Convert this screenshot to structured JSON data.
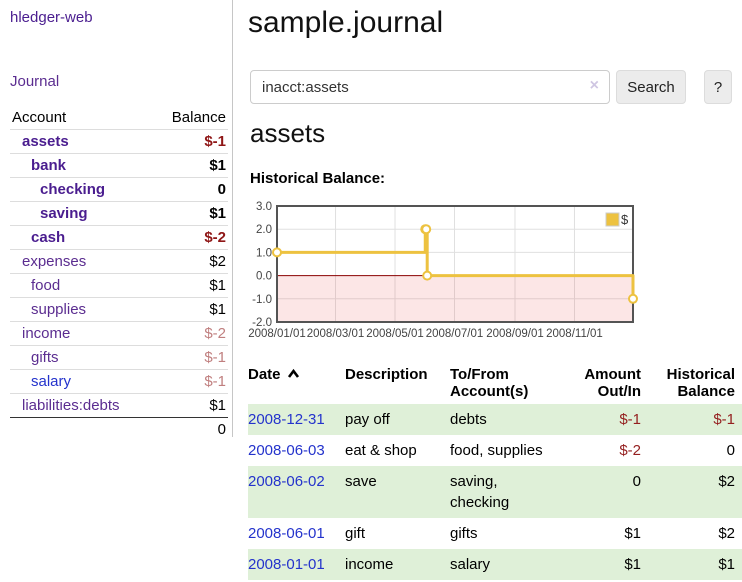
{
  "app": {
    "brand": "hledger-web"
  },
  "sidebar": {
    "journal_label": "Journal",
    "accounts": {
      "header_account": "Account",
      "header_balance": "Balance",
      "rows": [
        {
          "name": "assets",
          "balance": "$-1"
        },
        {
          "name": "bank",
          "balance": "$1"
        },
        {
          "name": "checking",
          "balance": "0"
        },
        {
          "name": "saving",
          "balance": "$1"
        },
        {
          "name": "cash",
          "balance": "$-2"
        },
        {
          "name": "expenses",
          "balance": "$2"
        },
        {
          "name": "food",
          "balance": "$1"
        },
        {
          "name": "supplies",
          "balance": "$1"
        },
        {
          "name": "income",
          "balance": "$-2"
        },
        {
          "name": "gifts",
          "balance": "$-1"
        },
        {
          "name": "salary",
          "balance": "$-1"
        },
        {
          "name": "liabilities:debts",
          "balance": "$1"
        }
      ],
      "total": "0"
    }
  },
  "header": {
    "title": "sample.journal"
  },
  "search": {
    "value": "inacct:assets",
    "clear_icon": "×",
    "button_label": "Search",
    "help_label": "?"
  },
  "account_view": {
    "heading": "assets",
    "chart_label": "Historical Balance:"
  },
  "chart_data": {
    "type": "line",
    "step": true,
    "title": "Historical Balance",
    "legend": {
      "label": "$",
      "color": "#edc240",
      "position": "top-right"
    },
    "xlim": [
      "2008-01-01",
      "2008-12-31"
    ],
    "ylim": [
      -2.0,
      3.0
    ],
    "y_ticks": [
      3.0,
      2.0,
      1.0,
      0.0,
      -1.0,
      -2.0
    ],
    "x_ticks": [
      {
        "date": "2008-01-01",
        "label": "2008/01/01"
      },
      {
        "date": "2008-03-01",
        "label": "2008/03/01"
      },
      {
        "date": "2008-05-01",
        "label": "2008/05/01"
      },
      {
        "date": "2008-07-01",
        "label": "2008/07/01"
      },
      {
        "date": "2008-09-01",
        "label": "2008/09/01"
      },
      {
        "date": "2008-11-01",
        "label": "2008/11/01"
      }
    ],
    "series": [
      {
        "name": "$",
        "color": "#edc240",
        "points": [
          [
            "2008-01-01",
            1.0
          ],
          [
            "2008-06-01",
            2.0
          ],
          [
            "2008-06-02",
            2.0
          ],
          [
            "2008-06-03",
            0.0
          ],
          [
            "2008-12-31",
            -1.0
          ]
        ]
      }
    ],
    "zero_line_color": "#8a0000",
    "negative_region_color": "rgba(230,60,60,0.13)",
    "grid": true
  },
  "register": {
    "headers": {
      "date": "Date",
      "description": "Description",
      "accounts": "To/From Account(s)",
      "amount": "Amount Out/In",
      "balance": "Historical Balance"
    },
    "rows": [
      {
        "date": "2008-12-31",
        "description": "pay off",
        "accounts": "debts",
        "amount": "$-1",
        "balance": "$-1"
      },
      {
        "date": "2008-06-03",
        "description": "eat & shop",
        "accounts": "food, supplies",
        "amount": "$-2",
        "balance": "0"
      },
      {
        "date": "2008-06-02",
        "description": "save",
        "accounts": "saving, checking",
        "amount": "0",
        "balance": "$2"
      },
      {
        "date": "2008-06-01",
        "description": "gift",
        "accounts": "gifts",
        "amount": "$1",
        "balance": "$2"
      },
      {
        "date": "2008-01-01",
        "description": "income",
        "accounts": "salary",
        "amount": "$1",
        "balance": "$1"
      }
    ]
  }
}
